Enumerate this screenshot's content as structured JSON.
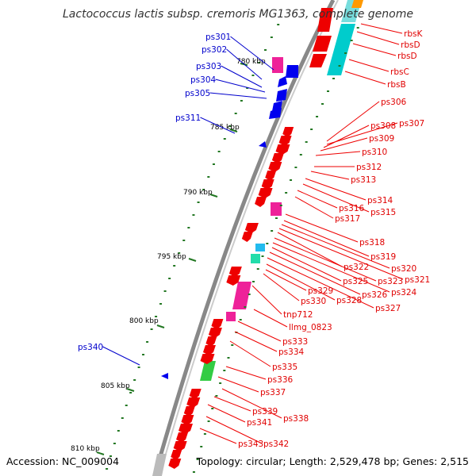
{
  "title": "Lactococcus lactis subsp. cremoris MG1363, complete genome",
  "accession": "Accession: NC_009004",
  "topology": "Topology: circular; Length: 2,529,478 bp; Genes: 2,515",
  "colors": {
    "forward": "#ee0000",
    "reverse": "#0000ee",
    "pseudo": "#ee22aa",
    "rna": "#00cccc",
    "mobile": "#22dd66",
    "ticks": "#227722"
  },
  "ticks": [
    "780 kbp",
    "785 kbp",
    "790 kbp",
    "795 kbp",
    "800 kbp",
    "805 kbp",
    "810 kbp"
  ],
  "labels_right": [
    "rbsK",
    "rbsD",
    "rbsD",
    "rbsC",
    "rbsB",
    "ps306",
    "ps307",
    "ps308",
    "ps309",
    "ps310",
    "ps312",
    "ps313",
    "ps314",
    "ps315",
    "ps316",
    "ps317",
    "ps318",
    "ps319",
    "ps320",
    "ps321",
    "ps322",
    "ps323",
    "ps324",
    "ps325",
    "ps326",
    "ps327",
    "ps328",
    "ps329",
    "ps330",
    "tnp712",
    "llmg_0823",
    "ps333",
    "ps334",
    "ps335",
    "ps336",
    "ps337",
    "ps338",
    "ps339",
    "ps341",
    "ps342",
    "ps343"
  ],
  "labels_left": [
    "ps301",
    "ps302",
    "ps303",
    "ps304",
    "ps305",
    "ps311",
    "ps340"
  ]
}
